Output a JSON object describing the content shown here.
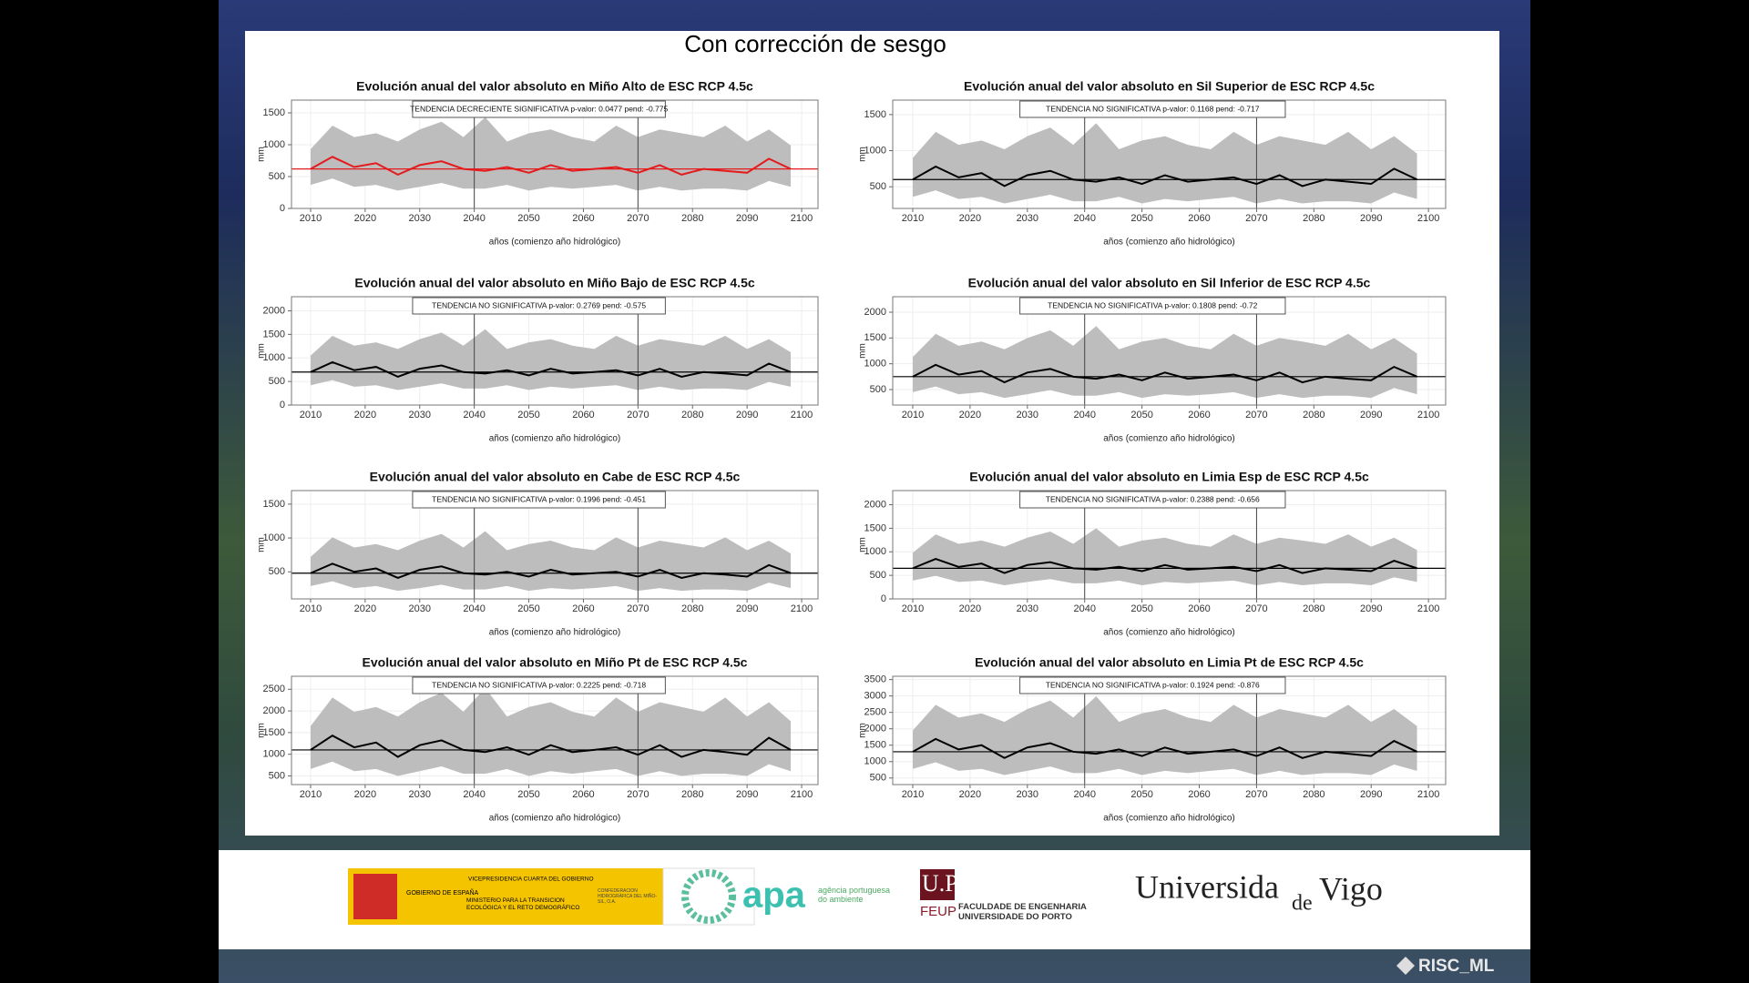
{
  "slide": {
    "title": "Con corrección de sesgo",
    "footer": "RISC_ML",
    "logos": {
      "gov_vp": "VICEPRESIDENCIA CUARTA DEL GOBIERNO",
      "gov": "GOBIERNO DE ESPAÑA",
      "gov_min": "MINISTERIO PARA LA TRANSICIÓN ECOLÓGICA Y EL RETO DEMOGRÁFICO",
      "gov_chms": "CONFEDERACIÓN HIDROGRÁFICA DEL MIÑO-SIL, O.A.",
      "apa": "apa",
      "apa_full": "agência portuguesa do ambiente",
      "uporto": "U.PORTO",
      "feup": "FEUP",
      "feup_full": "FACULDADE DE ENGENHARIA UNIVERSIDADE DO PORTO",
      "uvigo_a": "Universida",
      "uvigo_b": "de",
      "uvigo_c": "Vigo"
    }
  },
  "chart_data": [
    {
      "type": "line",
      "title": "Evolución anual del valor absoluto en Miño Alto de ESC RCP 4.5c",
      "annotation": "TENDENCIA DECRECIENTE SIGNIFICATIVA  p-valor: 0.0477  pend:  -0.775",
      "xlabel": "años (comienzo año hidrológico)",
      "ylabel": "mm",
      "xlim": [
        2006.5,
        2103
      ],
      "xticks": [
        2010,
        2020,
        2030,
        2040,
        2050,
        2060,
        2070,
        2080,
        2090,
        2100
      ],
      "ylim": [
        0,
        1700
      ],
      "yticks": [
        0,
        500,
        1000,
        1500
      ],
      "grid": true,
      "vlines": [
        2040,
        2070
      ],
      "reference_line": 620,
      "x": [
        2010,
        2014,
        2018,
        2022,
        2026,
        2030,
        2034,
        2038,
        2042,
        2046,
        2050,
        2054,
        2058,
        2062,
        2066,
        2070,
        2074,
        2078,
        2082,
        2086,
        2090,
        2094,
        2098
      ],
      "series": [
        {
          "color": "#e41a1c",
          "values": [
            620,
            810,
            650,
            710,
            530,
            680,
            740,
            620,
            590,
            650,
            560,
            680,
            590,
            620,
            650,
            560,
            680,
            530,
            620,
            590,
            560,
            780,
            620
          ]
        }
      ],
      "band": {
        "color": "#bdbdbd",
        "lower": [
          370,
          470,
          340,
          370,
          280,
          340,
          400,
          310,
          310,
          370,
          280,
          340,
          310,
          340,
          370,
          280,
          340,
          280,
          310,
          310,
          280,
          430,
          340
        ],
        "upper": [
          930,
          1300,
          1120,
          1180,
          1050,
          1240,
          1360,
          1120,
          1430,
          1050,
          1180,
          1240,
          1120,
          1050,
          1300,
          1120,
          1240,
          1180,
          1120,
          1300,
          1050,
          1240,
          990
        ]
      }
    },
    {
      "type": "line",
      "title": "Evolución anual del valor absoluto en Sil Superior de ESC RCP 4.5c",
      "annotation": "TENDENCIA NO SIGNIFICATIVA  p-valor: 0.1168  pend:  -0.717",
      "xlabel": "años (comienzo año hidrológico)",
      "ylabel": "mm",
      "xlim": [
        2006.5,
        2103
      ],
      "xticks": [
        2010,
        2020,
        2030,
        2040,
        2050,
        2060,
        2070,
        2080,
        2090,
        2100
      ],
      "ylim": [
        200,
        1700
      ],
      "yticks": [
        500,
        1000,
        1500
      ],
      "grid": true,
      "vlines": [
        2040,
        2070
      ],
      "reference_line": 600,
      "x": [
        2010,
        2014,
        2018,
        2022,
        2026,
        2030,
        2034,
        2038,
        2042,
        2046,
        2050,
        2054,
        2058,
        2062,
        2066,
        2070,
        2074,
        2078,
        2082,
        2086,
        2090,
        2094,
        2098
      ],
      "series": [
        {
          "color": "#000000",
          "values": [
            600,
            780,
            630,
            690,
            510,
            660,
            720,
            600,
            570,
            630,
            540,
            660,
            570,
            600,
            630,
            540,
            660,
            510,
            600,
            570,
            540,
            750,
            600
          ]
        }
      ],
      "band": {
        "color": "#bdbdbd",
        "lower": [
          360,
          450,
          330,
          360,
          270,
          330,
          390,
          300,
          300,
          360,
          270,
          330,
          300,
          330,
          360,
          270,
          330,
          270,
          300,
          300,
          270,
          420,
          330
        ],
        "upper": [
          900,
          1260,
          1080,
          1140,
          1020,
          1200,
          1320,
          1080,
          1380,
          1020,
          1140,
          1200,
          1080,
          1020,
          1260,
          1080,
          1200,
          1140,
          1080,
          1260,
          1020,
          1200,
          960
        ]
      }
    },
    {
      "type": "line",
      "title": "Evolución anual del valor absoluto en Miño Bajo de ESC RCP 4.5c",
      "annotation": "TENDENCIA NO SIGNIFICATIVA  p-valor: 0.2769  pend:  -0.575",
      "xlabel": "años (comienzo año hidrológico)",
      "ylabel": "mm",
      "xlim": [
        2006.5,
        2103
      ],
      "xticks": [
        2010,
        2020,
        2030,
        2040,
        2050,
        2060,
        2070,
        2080,
        2090,
        2100
      ],
      "ylim": [
        0,
        2300
      ],
      "yticks": [
        0,
        500,
        1000,
        1500,
        2000
      ],
      "grid": true,
      "vlines": [
        2040,
        2070
      ],
      "reference_line": 700,
      "x": [
        2010,
        2014,
        2018,
        2022,
        2026,
        2030,
        2034,
        2038,
        2042,
        2046,
        2050,
        2054,
        2058,
        2062,
        2066,
        2070,
        2074,
        2078,
        2082,
        2086,
        2090,
        2094,
        2098
      ],
      "series": [
        {
          "color": "#000000",
          "values": [
            700,
            910,
            740,
            810,
            600,
            770,
            840,
            700,
            670,
            740,
            630,
            770,
            670,
            700,
            740,
            630,
            770,
            600,
            700,
            670,
            630,
            880,
            700
          ]
        }
      ],
      "band": {
        "color": "#bdbdbd",
        "lower": [
          420,
          530,
          390,
          420,
          320,
          390,
          460,
          350,
          350,
          420,
          320,
          390,
          350,
          390,
          420,
          320,
          390,
          320,
          350,
          350,
          320,
          490,
          390
        ],
        "upper": [
          1050,
          1470,
          1260,
          1330,
          1190,
          1400,
          1540,
          1260,
          1610,
          1190,
          1330,
          1400,
          1260,
          1190,
          1470,
          1260,
          1400,
          1330,
          1260,
          1470,
          1190,
          1400,
          1120
        ]
      }
    },
    {
      "type": "line",
      "title": "Evolución anual del valor absoluto en Sil Inferior de ESC RCP 4.5c",
      "annotation": "TENDENCIA NO SIGNIFICATIVA  p-valor: 0.1808  pend:  -0.72",
      "xlabel": "años (comienzo año hidrológico)",
      "ylabel": "mm",
      "xlim": [
        2006.5,
        2103
      ],
      "xticks": [
        2010,
        2020,
        2030,
        2040,
        2050,
        2060,
        2070,
        2080,
        2090,
        2100
      ],
      "ylim": [
        200,
        2300
      ],
      "yticks": [
        500,
        1000,
        1500,
        2000
      ],
      "grid": true,
      "vlines": [
        2040,
        2070
      ],
      "reference_line": 750,
      "x": [
        2010,
        2014,
        2018,
        2022,
        2026,
        2030,
        2034,
        2038,
        2042,
        2046,
        2050,
        2054,
        2058,
        2062,
        2066,
        2070,
        2074,
        2078,
        2082,
        2086,
        2090,
        2094,
        2098
      ],
      "series": [
        {
          "color": "#000000",
          "values": [
            750,
            980,
            790,
            860,
            640,
            830,
            900,
            750,
            710,
            790,
            680,
            830,
            710,
            750,
            790,
            680,
            830,
            640,
            750,
            710,
            680,
            940,
            750
          ]
        }
      ],
      "band": {
        "color": "#bdbdbd",
        "lower": [
          450,
          560,
          410,
          450,
          340,
          410,
          490,
          380,
          380,
          450,
          340,
          410,
          380,
          410,
          450,
          340,
          410,
          340,
          380,
          380,
          340,
          530,
          410
        ],
        "upper": [
          1130,
          1580,
          1350,
          1430,
          1280,
          1500,
          1650,
          1350,
          1730,
          1280,
          1430,
          1500,
          1350,
          1280,
          1580,
          1350,
          1500,
          1430,
          1350,
          1580,
          1280,
          1500,
          1200
        ]
      }
    },
    {
      "type": "line",
      "title": "Evolución anual del valor absoluto en Cabe de ESC RCP 4.5c",
      "annotation": "TENDENCIA NO SIGNIFICATIVA  p-valor: 0.1996  pend:  -0.451",
      "xlabel": "años (comienzo año hidrológico)",
      "ylabel": "mm",
      "xlim": [
        2006.5,
        2103
      ],
      "xticks": [
        2010,
        2020,
        2030,
        2040,
        2050,
        2060,
        2070,
        2080,
        2090,
        2100
      ],
      "ylim": [
        100,
        1700
      ],
      "yticks": [
        500,
        1000,
        1500
      ],
      "grid": true,
      "vlines": [
        2040,
        2070
      ],
      "reference_line": 480,
      "x": [
        2010,
        2014,
        2018,
        2022,
        2026,
        2030,
        2034,
        2038,
        2042,
        2046,
        2050,
        2054,
        2058,
        2062,
        2066,
        2070,
        2074,
        2078,
        2082,
        2086,
        2090,
        2094,
        2098
      ],
      "series": [
        {
          "color": "#000000",
          "values": [
            480,
            620,
            500,
            550,
            410,
            530,
            580,
            480,
            460,
            500,
            430,
            530,
            460,
            480,
            500,
            430,
            530,
            410,
            480,
            460,
            430,
            600,
            480
          ]
        }
      ],
      "band": {
        "color": "#bdbdbd",
        "lower": [
          290,
          360,
          260,
          290,
          220,
          260,
          310,
          240,
          240,
          290,
          220,
          260,
          240,
          260,
          290,
          220,
          260,
          220,
          240,
          240,
          220,
          340,
          260
        ],
        "upper": [
          720,
          1010,
          860,
          910,
          820,
          960,
          1060,
          860,
          1100,
          820,
          910,
          960,
          860,
          820,
          1010,
          860,
          960,
          910,
          860,
          1010,
          820,
          960,
          770
        ]
      }
    },
    {
      "type": "line",
      "title": "Evolución anual del valor absoluto en Limia Esp de ESC RCP 4.5c",
      "annotation": "TENDENCIA NO SIGNIFICATIVA  p-valor: 0.2388  pend:  -0.656",
      "xlabel": "años (comienzo año hidrológico)",
      "ylabel": "mm",
      "xlim": [
        2006.5,
        2103
      ],
      "xticks": [
        2010,
        2020,
        2030,
        2040,
        2050,
        2060,
        2070,
        2080,
        2090,
        2100
      ],
      "ylim": [
        0,
        2300
      ],
      "yticks": [
        0,
        500,
        1000,
        1500,
        2000
      ],
      "grid": true,
      "vlines": [
        2040,
        2070
      ],
      "reference_line": 650,
      "x": [
        2010,
        2014,
        2018,
        2022,
        2026,
        2030,
        2034,
        2038,
        2042,
        2046,
        2050,
        2054,
        2058,
        2062,
        2066,
        2070,
        2074,
        2078,
        2082,
        2086,
        2090,
        2094,
        2098
      ],
      "series": [
        {
          "color": "#000000",
          "values": [
            650,
            850,
            680,
            750,
            550,
            720,
            780,
            650,
            620,
            680,
            590,
            720,
            620,
            650,
            680,
            590,
            720,
            550,
            650,
            620,
            590,
            810,
            650
          ]
        }
      ],
      "band": {
        "color": "#bdbdbd",
        "lower": [
          390,
          490,
          360,
          390,
          290,
          360,
          420,
          330,
          330,
          390,
          290,
          360,
          330,
          360,
          390,
          290,
          360,
          290,
          330,
          330,
          290,
          460,
          360
        ],
        "upper": [
          980,
          1370,
          1170,
          1240,
          1110,
          1300,
          1430,
          1170,
          1500,
          1110,
          1240,
          1300,
          1170,
          1110,
          1370,
          1170,
          1300,
          1240,
          1170,
          1370,
          1110,
          1300,
          1040
        ]
      }
    },
    {
      "type": "line",
      "title": "Evolución anual del valor absoluto en Miño Pt de ESC RCP 4.5c",
      "annotation": "TENDENCIA NO SIGNIFICATIVA  p-valor: 0.2225  pend:  -0.718",
      "xlabel": "años (comienzo año hidrológico)",
      "ylabel": "mm",
      "xlim": [
        2006.5,
        2103
      ],
      "xticks": [
        2010,
        2020,
        2030,
        2040,
        2050,
        2060,
        2070,
        2080,
        2090,
        2100
      ],
      "ylim": [
        300,
        2800
      ],
      "yticks": [
        500,
        1000,
        1500,
        2000,
        2500
      ],
      "grid": true,
      "vlines": [
        2040,
        2070
      ],
      "reference_line": 1100,
      "x": [
        2010,
        2014,
        2018,
        2022,
        2026,
        2030,
        2034,
        2038,
        2042,
        2046,
        2050,
        2054,
        2058,
        2062,
        2066,
        2070,
        2074,
        2078,
        2082,
        2086,
        2090,
        2094,
        2098
      ],
      "series": [
        {
          "color": "#000000",
          "values": [
            1100,
            1430,
            1160,
            1270,
            940,
            1210,
            1320,
            1100,
            1050,
            1160,
            990,
            1210,
            1050,
            1100,
            1160,
            990,
            1210,
            940,
            1100,
            1050,
            990,
            1380,
            1100
          ]
        }
      ],
      "band": {
        "color": "#bdbdbd",
        "lower": [
          660,
          830,
          610,
          660,
          500,
          610,
          720,
          550,
          550,
          660,
          500,
          610,
          550,
          610,
          660,
          500,
          610,
          500,
          550,
          550,
          500,
          770,
          610
        ],
        "upper": [
          1650,
          2310,
          1980,
          2090,
          1870,
          2200,
          2420,
          1980,
          2530,
          1870,
          2090,
          2200,
          1980,
          1870,
          2310,
          1980,
          2200,
          2090,
          1980,
          2310,
          1870,
          2200,
          1760
        ]
      }
    },
    {
      "type": "line",
      "title": "Evolución anual del valor absoluto en Limia Pt de ESC RCP 4.5c",
      "annotation": "TENDENCIA NO SIGNIFICATIVA  p-valor: 0.1924  pend:  -0.876",
      "xlabel": "años (comienzo año hidrológico)",
      "ylabel": "mm",
      "xlim": [
        2006.5,
        2103
      ],
      "xticks": [
        2010,
        2020,
        2030,
        2040,
        2050,
        2060,
        2070,
        2080,
        2090,
        2100
      ],
      "ylim": [
        300,
        3600
      ],
      "yticks": [
        500,
        1000,
        1500,
        2000,
        2500,
        3000,
        3500
      ],
      "grid": true,
      "vlines": [
        2040,
        2070
      ],
      "reference_line": 1300,
      "x": [
        2010,
        2014,
        2018,
        2022,
        2026,
        2030,
        2034,
        2038,
        2042,
        2046,
        2050,
        2054,
        2058,
        2062,
        2066,
        2070,
        2074,
        2078,
        2082,
        2086,
        2090,
        2094,
        2098
      ],
      "series": [
        {
          "color": "#000000",
          "values": [
            1300,
            1690,
            1370,
            1500,
            1110,
            1430,
            1560,
            1300,
            1240,
            1370,
            1170,
            1430,
            1240,
            1300,
            1370,
            1170,
            1430,
            1110,
            1300,
            1240,
            1170,
            1630,
            1300
          ]
        }
      ],
      "band": {
        "color": "#bdbdbd",
        "lower": [
          780,
          980,
          720,
          780,
          590,
          720,
          850,
          650,
          650,
          780,
          590,
          720,
          650,
          720,
          780,
          590,
          720,
          590,
          650,
          650,
          590,
          910,
          720
        ],
        "upper": [
          1950,
          2730,
          2340,
          2470,
          2210,
          2600,
          2860,
          2340,
          2990,
          2210,
          2470,
          2600,
          2340,
          2210,
          2730,
          2340,
          2600,
          2470,
          2340,
          2730,
          2210,
          2600,
          2080
        ]
      }
    }
  ]
}
